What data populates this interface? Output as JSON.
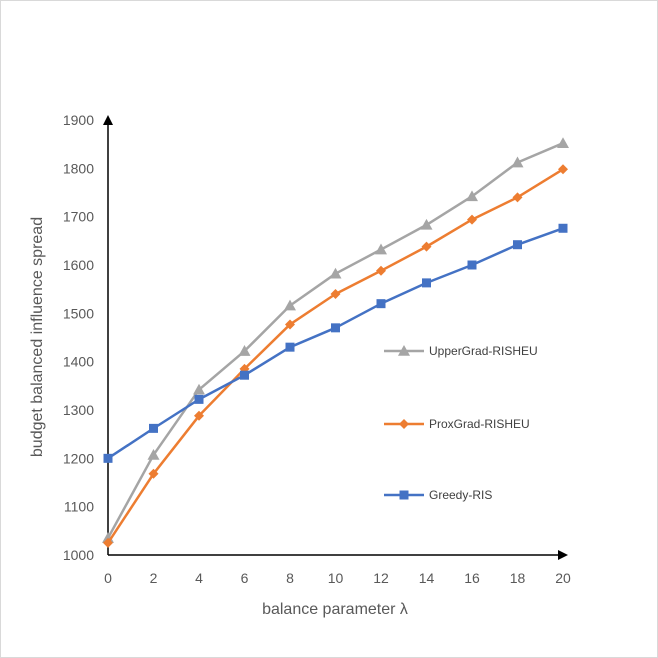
{
  "chart_data": {
    "type": "line",
    "title": "",
    "xlabel": "balance parameter λ",
    "ylabel": "budget balanced influence spread",
    "xlim": [
      0,
      20
    ],
    "ylim": [
      1000,
      1900
    ],
    "x_ticks": [
      "0",
      "2",
      "4",
      "6",
      "8",
      "10",
      "12",
      "14",
      "16",
      "18",
      "20"
    ],
    "y_ticks": [
      "1000",
      "1100",
      "1200",
      "1300",
      "1400",
      "1500",
      "1600",
      "1700",
      "1800",
      "1900"
    ],
    "x": [
      0,
      2,
      4,
      6,
      8,
      10,
      12,
      14,
      16,
      18,
      20
    ],
    "grid": false,
    "legend_position": "right",
    "series": [
      {
        "name": "UpperGrad-RISHEU",
        "color": "#a5a5a5",
        "marker": "triangle",
        "values": [
          1035,
          1207,
          1342,
          1422,
          1516,
          1582,
          1632,
          1683,
          1742,
          1812,
          1852
        ]
      },
      {
        "name": "ProxGrad-RISHEU",
        "color": "#ed7d31",
        "marker": "diamond",
        "values": [
          1025,
          1168,
          1288,
          1385,
          1477,
          1540,
          1588,
          1638,
          1694,
          1740,
          1798
        ]
      },
      {
        "name": "Greedy-RIS",
        "color": "#4472c4",
        "marker": "square",
        "values": [
          1200,
          1262,
          1322,
          1372,
          1430,
          1470,
          1520,
          1563,
          1600,
          1642,
          1676
        ]
      }
    ]
  }
}
